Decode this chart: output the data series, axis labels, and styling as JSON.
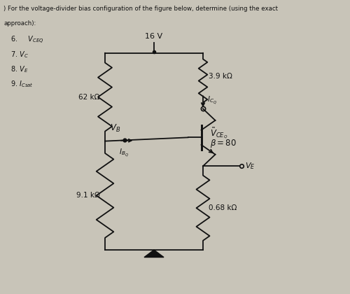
{
  "title_text": ") For the voltage-divider bias configuration of the figure below, determine (using the exact\napproach):",
  "questions": [
    [
      "6.    ",
      "$V_{CEQ}$"
    ],
    [
      "7. $V_C$",
      ""
    ],
    [
      "8. $V_E$",
      ""
    ],
    [
      "9. $I_{Csat}$",
      ""
    ]
  ],
  "vcc": "16 V",
  "r1": "62 kΩ",
  "r2": "9.1 kΩ",
  "rc": "3.9 kΩ",
  "re": "0.68 kΩ",
  "beta": "β = 80",
  "ICQ_label": "$I_{C_Q}$",
  "IBQ_label": "$I_{B_Q}$",
  "VB_label": "$V_B$",
  "VCEQ_label": "$\\tilde{V}_{CEQ}$",
  "VE_label": "$V_E$",
  "bg_color": "#c8c4b8",
  "text_color": "#111111",
  "circuit_color": "#111111"
}
